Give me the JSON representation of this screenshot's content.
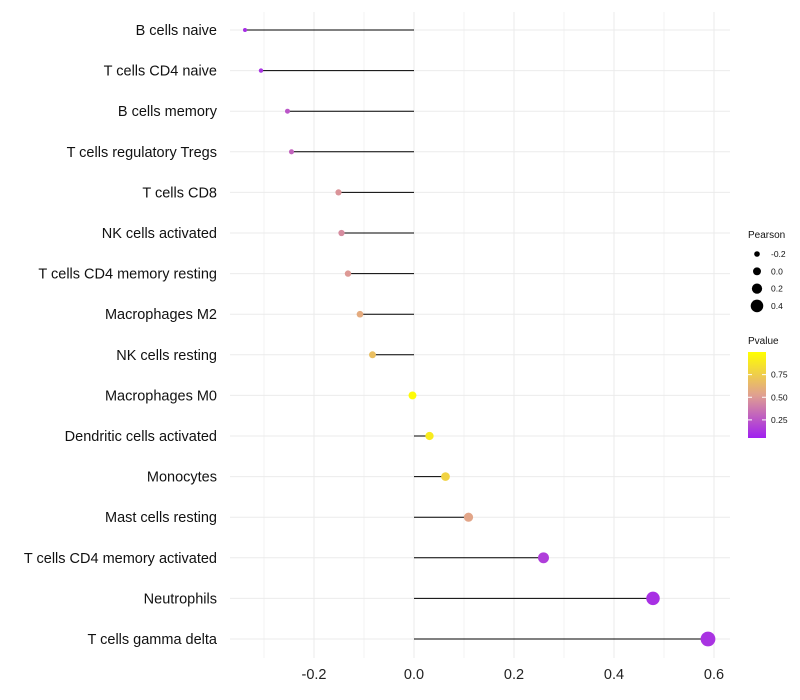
{
  "chart_data": {
    "type": "lollipop",
    "title": "",
    "xlabel": "",
    "ylabel": "",
    "xlim": [
      -0.36,
      0.62
    ],
    "x_ticks": [
      -0.2,
      0.0,
      0.2,
      0.4,
      0.6
    ],
    "x_tick_labels": [
      "-0.2",
      "0.0",
      "0.2",
      "0.4",
      "0.6"
    ],
    "grid": true,
    "categories": [
      "B cells naive",
      "T cells CD4 naive",
      "B cells memory",
      "T cells regulatory  Tregs",
      "T cells CD8",
      "NK cells activated",
      "T cells CD4 memory resting",
      "Macrophages M2",
      "NK cells resting",
      "Macrophages M0",
      "Dendritic cells activated",
      "Monocytes",
      "Mast cells resting",
      "T cells CD4 memory activated",
      "Neutrophils",
      "T cells gamma delta"
    ],
    "pearson": [
      -0.338,
      -0.306,
      -0.253,
      -0.245,
      -0.151,
      -0.145,
      -0.132,
      -0.108,
      -0.083,
      -0.003,
      0.031,
      0.063,
      0.109,
      0.259,
      0.478,
      0.588
    ],
    "pvalue": [
      0.1,
      0.12,
      0.25,
      0.3,
      0.48,
      0.45,
      0.5,
      0.58,
      0.68,
      0.98,
      0.9,
      0.78,
      0.55,
      0.16,
      0.11,
      0.12
    ],
    "size_legend": {
      "title": "Pearson",
      "values": [
        -0.2,
        0.0,
        0.2,
        0.4
      ],
      "labels": [
        "-0.2",
        "0.0",
        "0.2",
        "0.4"
      ]
    },
    "color_legend": {
      "title": "Pvalue",
      "range": [
        0.05,
        1.0
      ],
      "ticks": [
        0.25,
        0.5,
        0.75
      ],
      "labels": [
        "0.25",
        "0.50",
        "0.75"
      ],
      "low_color": "#a020f0",
      "mid_color": "#e0a090",
      "high_color": "#ffff00"
    },
    "line_color": "#000000",
    "grid_color": "#ebebeb"
  }
}
